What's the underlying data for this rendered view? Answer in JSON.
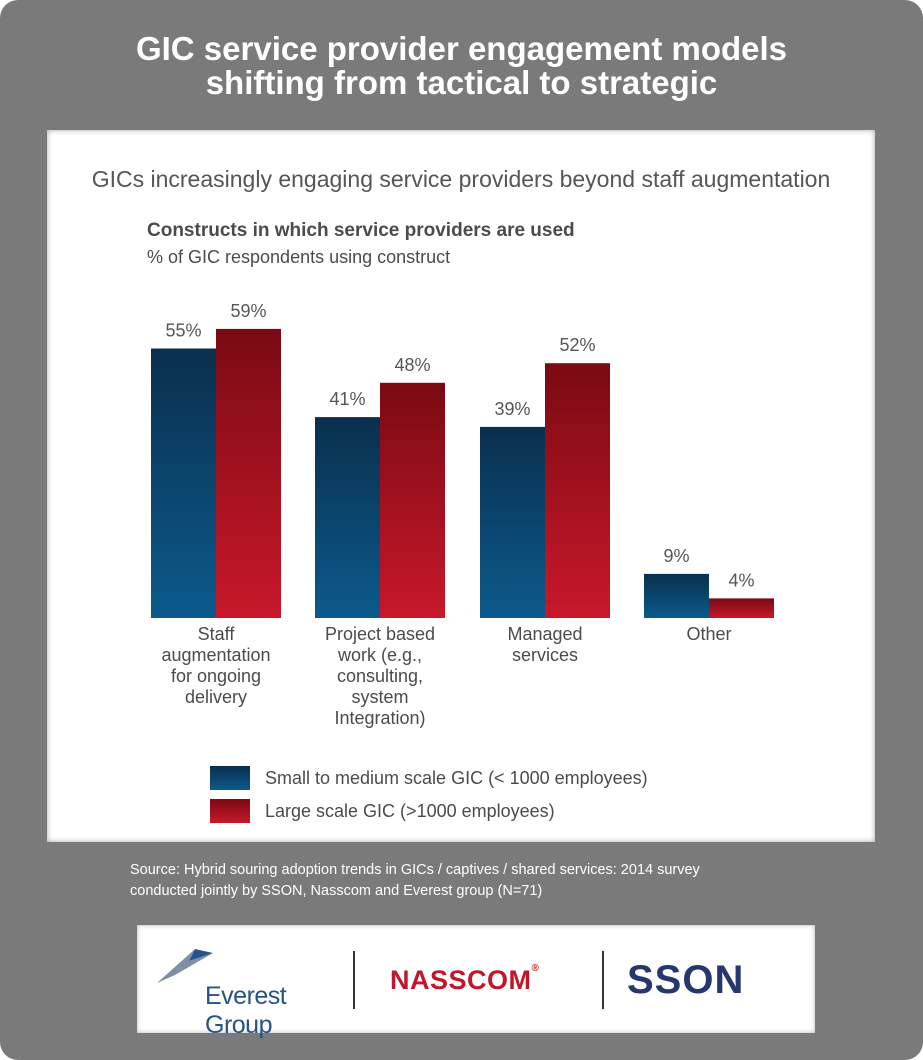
{
  "title_line1": "GIC service provider engagement models",
  "title_line2": "shifting from tactical to strategic",
  "subtitle": "GICs increasingly engaging service providers beyond staff augmentation",
  "colors": {
    "frame": "#7a7a7a",
    "small": "#0d4a75",
    "large": "#b3131f"
  },
  "chart_data": {
    "type": "bar",
    "title": "Constructs in which service providers are used",
    "subtitle": "% of GIC respondents using construct",
    "ylabel": "% of GIC respondents using construct",
    "xlabel": "",
    "ylim": [
      0,
      100
    ],
    "categories": [
      [
        "Staff",
        "augmentation",
        "for ongoing",
        "delivery"
      ],
      [
        "Project based",
        "work (e.g.,",
        "consulting,",
        "system",
        "Integration)"
      ],
      [
        "Managed",
        "services"
      ],
      [
        "Other"
      ]
    ],
    "series": [
      {
        "name": "Small to medium scale GIC (< 1000 employees)",
        "values": [
          55,
          41,
          39,
          9
        ],
        "labels": [
          "55%",
          "41%",
          "39%",
          "9%"
        ]
      },
      {
        "name": "Large scale GIC (>1000 employees)",
        "values": [
          59,
          48,
          52,
          4
        ],
        "labels": [
          "59%",
          "48%",
          "52%",
          "4%"
        ]
      }
    ],
    "legend_position": "bottom-left"
  },
  "source_line1": "Source: Hybrid souring adoption trends in GICs / captives / shared services: 2014 survey",
  "source_line2": "conducted jointly by SSON, Nasscom and Everest group (N=71)",
  "logos": {
    "everest": "Everest Group",
    "nasscom": "NASSCOM",
    "nasscom_mark": "®",
    "sson": "SSON"
  }
}
